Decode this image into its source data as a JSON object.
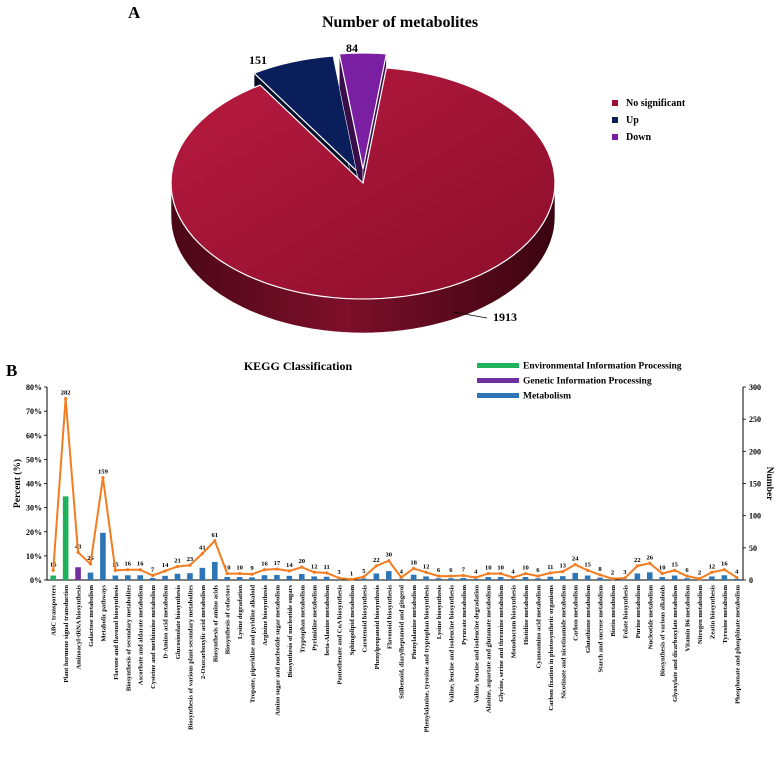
{
  "panel_a": {
    "letter": "A",
    "chart_data": {
      "type": "pie",
      "title": "Number of metabolites",
      "categories": [
        "No significant",
        "Up",
        "Down"
      ],
      "values": [
        1913,
        151,
        84
      ],
      "colors": [
        "#9b1232",
        "#0b1e5c",
        "#7a1fa2"
      ],
      "legend_position": "right"
    }
  },
  "panel_b": {
    "letter": "B",
    "chart_data": {
      "type": "bar",
      "title": "KEGG Classification",
      "ylabel": "Percent (%)",
      "y2label": "Number",
      "ylim": [
        0,
        80
      ],
      "y2lim": [
        0,
        300
      ],
      "yticks": [
        "0%",
        "10%",
        "20%",
        "30%",
        "40%",
        "50%",
        "60%",
        "70%",
        "80%"
      ],
      "y2ticks": [
        "0",
        "50",
        "100",
        "150",
        "200",
        "250",
        "300"
      ],
      "legend": [
        {
          "name": "Environmental Information Processing",
          "color": "#1fb25a"
        },
        {
          "name": "Genetic Information Processing",
          "color": "#7030a0"
        },
        {
          "name": "Metabolism",
          "color": "#2e75b6"
        }
      ],
      "line_color": "#f47c20",
      "categories": [
        "ABC transporters",
        "Plant hormone signal transduction",
        "Aminoacyl-tRNA biosynthesis",
        "Galactose metabolism",
        "Metabolic pathways",
        "Flavone and flavonol biosynthesis",
        "Biosynthesis of secondary metabolites",
        "Ascorbate and aldarate metabolism",
        "Cysteine and methionine metabolism",
        "D-Amino acid metabolism",
        "Glucosinolate biosynthesis",
        "Biosynthesis of various plant secondary metabolites",
        "2-Oxocarboxylic acid metabolism",
        "Biosynthesis of amino acids",
        "Biosynthesis of cofactors",
        "Lysine degradation",
        "Tropane, piperidine and pyridine alkaloid",
        "Arginine biosynthesis",
        "Amino sugar and nucleotide sugar metabolism",
        "Biosynthesis of nucleotide sugars",
        "Tryptophan metabolism",
        "Pyrimidine metabolism",
        "beta-Alanine metabolism",
        "Pantothenate and CoA biosynthesis",
        "Sphingolipid metabolism",
        "Carotenoid biosynthesis",
        "Phenylpropanoid biosynthesis",
        "Flavonoid biosynthesis",
        "Stilbenoid, diarylheptanoid and gingerol",
        "Phenylalanine metabolism",
        "Phenylalanine, tyrosine and tryptophan biosynthesis",
        "Lysine biosynthesis",
        "Valine, leucine and isoleucine biosynthesis",
        "Pyruvate metabolism",
        "Valine, leucine and isoleucine degradation",
        "Alanine, aspartate and glutamate metabolism",
        "Glycine, serine and threonine metabolism",
        "Monobactam biosynthesis",
        "Histidine metabolism",
        "Cyanoamino acid metabolism",
        "Carbon fixation in photosynthetic organisms",
        "Nicotinate and nicotinamide metabolism",
        "Carbon metabolism",
        "Glutathione metabolism",
        "Starch and sucrose metabolism",
        "Biotin metabolism",
        "Folate biosynthesis",
        "Purine metabolism",
        "Nucleotide metabolism",
        "Biosynthesis of various alkaloids",
        "Glyoxylate and dicarboxylate metabolism",
        "Vitamin B6 metabolism",
        "Nitrogen metabolism",
        "Zeatin biosynthesis",
        "Tyrosine metabolism",
        "Phosphonate and phosphinate metabolism"
      ],
      "values": [
        15,
        282,
        43,
        25,
        159,
        15,
        16,
        16,
        7,
        14,
        21,
        23,
        41,
        61,
        10,
        10,
        9,
        16,
        17,
        14,
        20,
        12,
        11,
        3,
        1,
        5,
        22,
        30,
        4,
        18,
        12,
        6,
        6,
        7,
        4,
        10,
        10,
        4,
        10,
        6,
        11,
        13,
        24,
        15,
        8,
        2,
        3,
        22,
        26,
        10,
        15,
        6,
        2,
        12,
        16,
        4
      ],
      "groups": [
        "env",
        "env",
        "gen",
        "met",
        "met",
        "met",
        "met",
        "met",
        "met",
        "met",
        "met",
        "met",
        "met",
        "met",
        "met",
        "met",
        "met",
        "met",
        "met",
        "met",
        "met",
        "met",
        "met",
        "met",
        "met",
        "met",
        "met",
        "met",
        "met",
        "met",
        "met",
        "met",
        "met",
        "met",
        "met",
        "met",
        "met",
        "met",
        "met",
        "met",
        "met",
        "met",
        "met",
        "met",
        "met",
        "met",
        "met",
        "met",
        "met",
        "met",
        "met",
        "met",
        "met",
        "met",
        "met",
        "met"
      ]
    }
  }
}
